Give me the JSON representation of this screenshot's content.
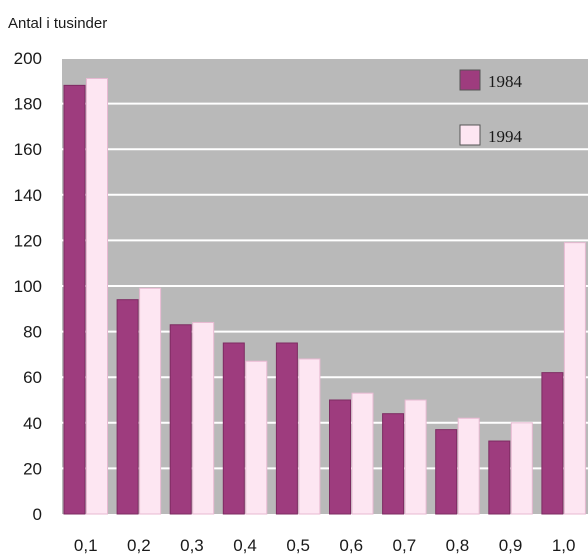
{
  "chart_data": {
    "type": "bar",
    "ylabel": "Antal i tusinder",
    "categories": [
      "0,1",
      "0,2",
      "0,3",
      "0,4",
      "0,5",
      "0,6",
      "0,7",
      "0,8",
      "0,9",
      "1,0"
    ],
    "ylim": [
      0,
      200
    ],
    "yticks": [
      0,
      20,
      40,
      60,
      80,
      100,
      120,
      140,
      160,
      180,
      200
    ],
    "grid": true,
    "legend_position": "top-right",
    "series": [
      {
        "name": "1984",
        "color": "#9e3c7e",
        "values": [
          188,
          94,
          83,
          75,
          75,
          50,
          44,
          37,
          32,
          62
        ]
      },
      {
        "name": "1994",
        "color": "#fde6f2",
        "values": [
          191,
          99,
          84,
          67,
          68,
          53,
          50,
          42,
          40,
          119
        ]
      }
    ],
    "plot_background": "#b9b9b9",
    "grid_color": "#ffffff"
  }
}
